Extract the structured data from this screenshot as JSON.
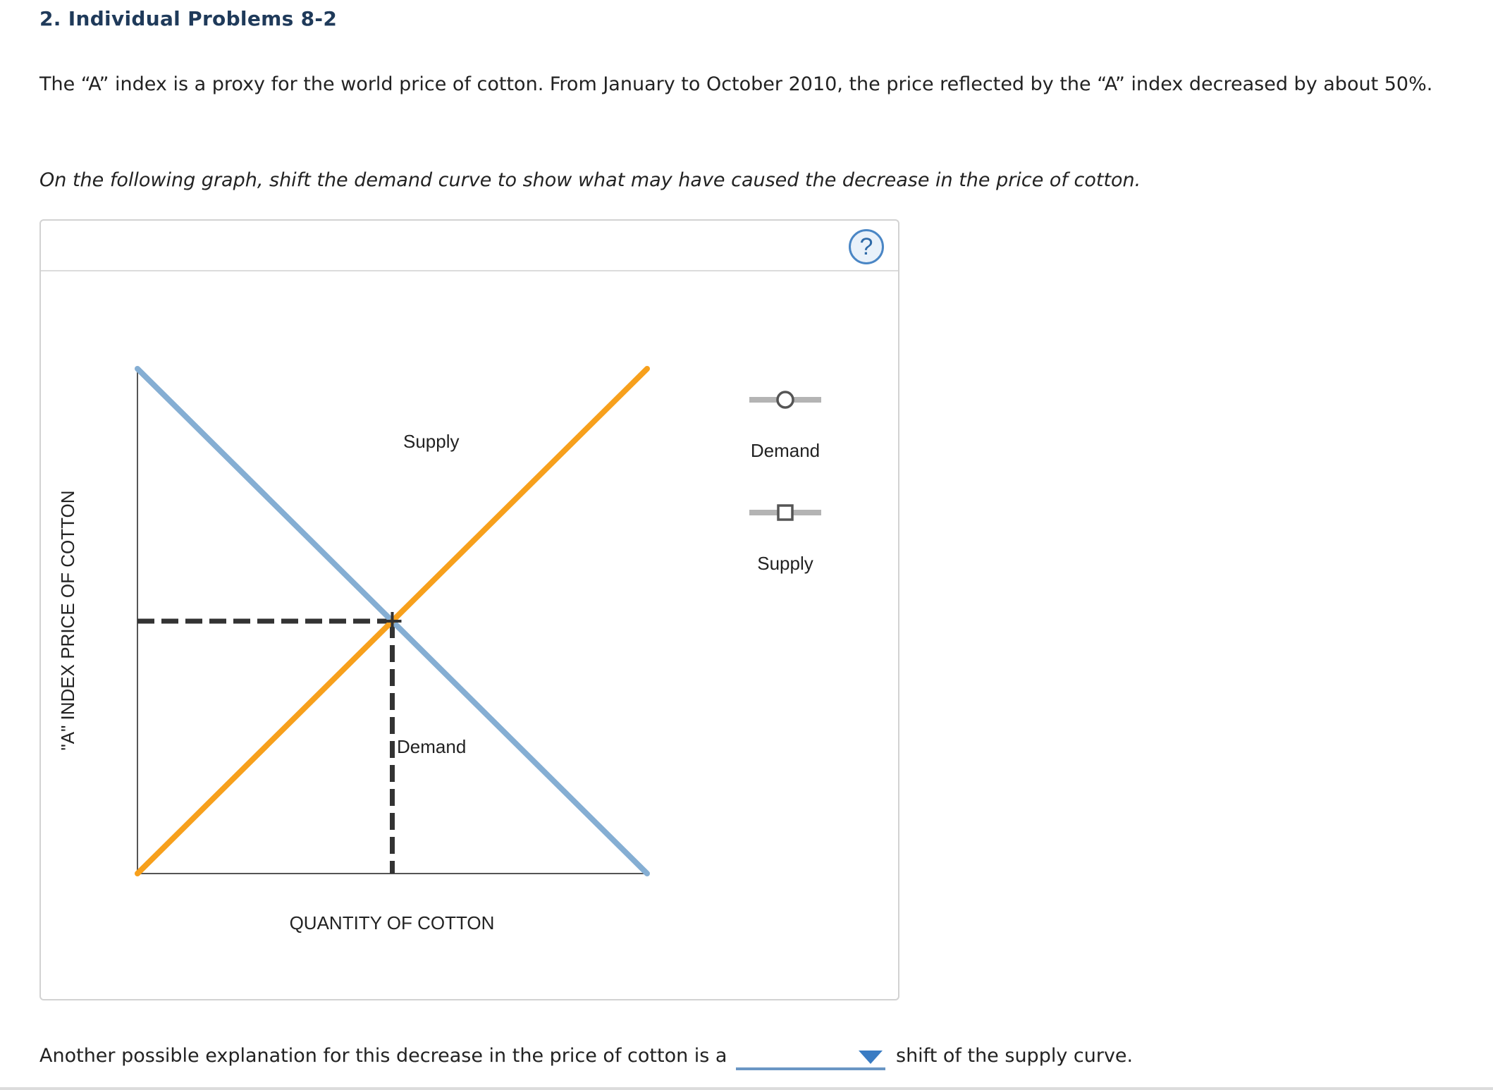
{
  "header": {
    "title": "2. Individual Problems 8-2"
  },
  "intro": {
    "text": "The “A” index is a proxy for the world price of cotton. From January to October 2010, the price reflected by the “A” index decreased by about 50%."
  },
  "instruction": {
    "text": "On the following graph, shift the demand curve to show what may have caused the decrease in the price of cotton."
  },
  "graph": {
    "help_label": "?",
    "y_axis_label": "\"A\" INDEX PRICE OF COTTON",
    "x_axis_label": "QUANTITY OF COTTON",
    "demand_label": "Demand",
    "supply_label": "Supply",
    "palette": {
      "demand_tool": "Demand",
      "supply_tool": "Supply"
    },
    "colors": {
      "demand": "#85aed3",
      "supply": "#f7a01c",
      "dashed": "#333333",
      "axis": "#555555",
      "tool_line": "#b4b4b4"
    }
  },
  "question": {
    "before_text": "Another possible explanation for this decrease in the price of cotton is a",
    "dropdown_value": "",
    "after_text": "shift of the supply curve."
  },
  "chart_data": {
    "type": "line",
    "xlabel": "QUANTITY OF COTTON",
    "ylabel": "\"A\" INDEX PRICE OF COTTON",
    "xlim": [
      0,
      100
    ],
    "ylim": [
      0,
      100
    ],
    "series": [
      {
        "name": "Demand",
        "x": [
          0,
          100
        ],
        "y": [
          100,
          0
        ]
      },
      {
        "name": "Supply",
        "x": [
          0,
          100
        ],
        "y": [
          0,
          100
        ]
      }
    ],
    "equilibrium": {
      "x": 50,
      "y": 50
    }
  }
}
